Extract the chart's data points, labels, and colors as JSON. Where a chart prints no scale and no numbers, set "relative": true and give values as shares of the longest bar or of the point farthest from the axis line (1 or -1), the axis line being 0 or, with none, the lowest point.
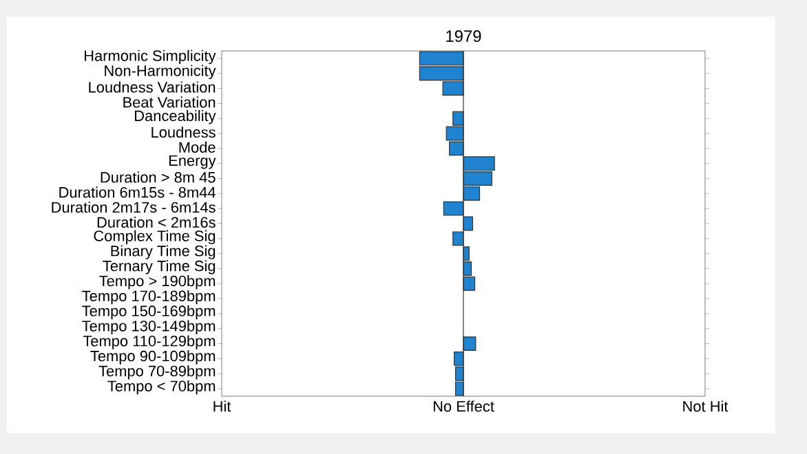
{
  "chart_data": {
    "type": "bar",
    "orientation": "horizontal",
    "title": "1979",
    "relative": true,
    "categories": [
      "Harmonic Simplicity",
      "Non-Harmonicity",
      "Loudness Variation",
      "Beat Variation",
      "Danceability",
      "Loudness",
      "Mode",
      "Energy",
      "Duration > 8m 45",
      "Duration 6m15s - 8m44",
      "Duration 2m17s - 6m14s",
      "Duration < 2m16s",
      "Complex Time Sig",
      "Binary Time Sig",
      "Ternary Time Sig",
      "Tempo > 190bpm",
      "Tempo 170-189bpm",
      "Tempo 150-169bpm",
      "Tempo 130-149bpm",
      "Tempo 110-129bpm",
      "Tempo 90-109bpm",
      "Tempo 70-89bpm",
      "Tempo < 70bpm"
    ],
    "values": [
      -1,
      -1,
      -0.47,
      0,
      -0.24,
      -0.39,
      -0.32,
      0.71,
      0.65,
      0.37,
      -0.45,
      0.21,
      -0.24,
      0.13,
      0.18,
      0.26,
      0,
      0,
      0,
      0.28,
      -0.21,
      -0.18,
      -0.18
    ],
    "color": "#1f83d0",
    "annotations": [
      "Hit",
      "No Effect",
      "Not Hit"
    ],
    "grid": false
  }
}
